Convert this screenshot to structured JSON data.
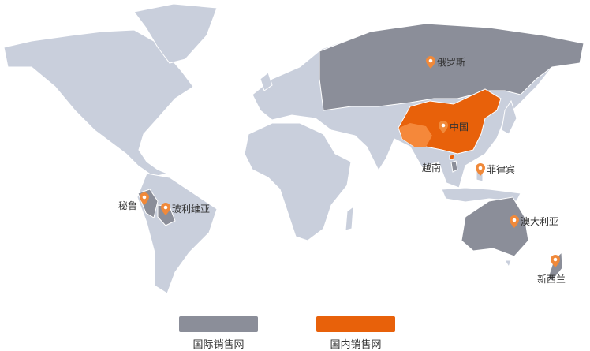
{
  "colors": {
    "land": "#c9cfdc",
    "international": "#8b8e99",
    "domestic": "#e8610a",
    "marker": "#f0893a"
  },
  "markers": {
    "russia": "俄罗斯",
    "china": "中国",
    "vietnam": "越南",
    "philippines": "菲律宾",
    "australia": "澳大利亚",
    "new_zealand": "新西兰",
    "peru": "秘鲁",
    "bolivia": "玻利维亚"
  },
  "legend": {
    "international": "国际销售网",
    "domestic": "国内销售网"
  }
}
